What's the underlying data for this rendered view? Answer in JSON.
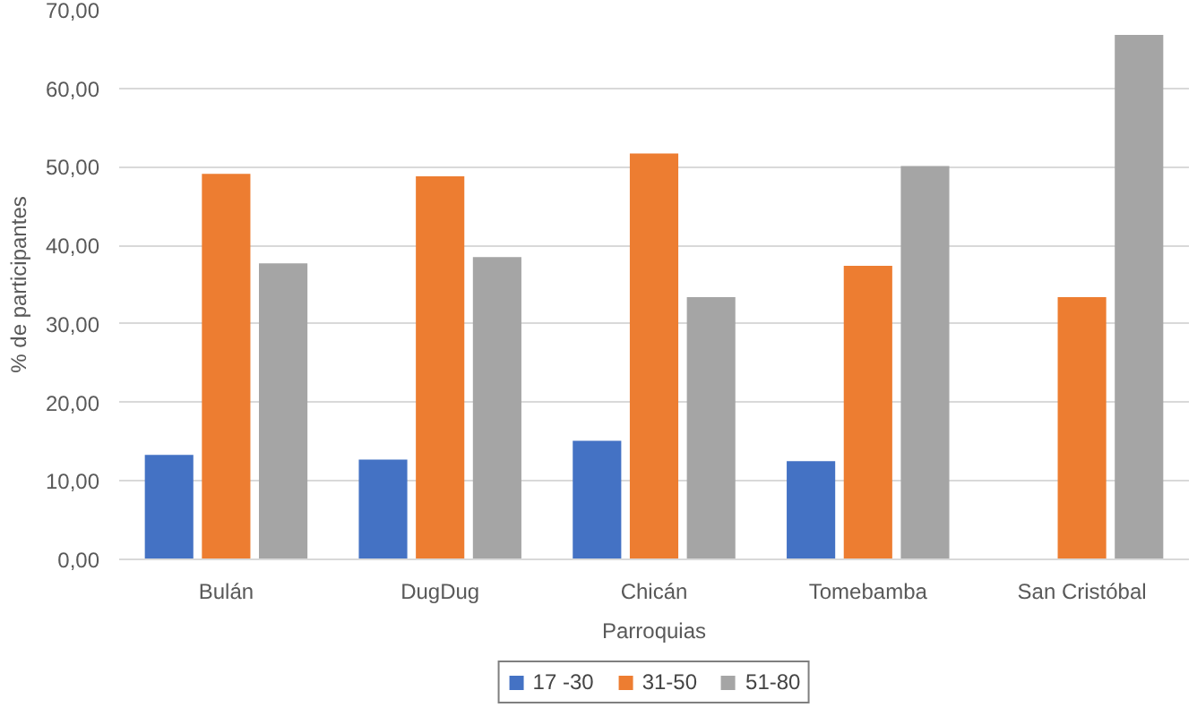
{
  "chart_data": {
    "type": "bar",
    "xlabel": "Parroquias",
    "ylabel": "% de participantes",
    "categories": [
      "Bulán",
      "DugDug",
      "Chicán",
      "Tomebamba",
      "San Cristóbal"
    ],
    "series": [
      {
        "name": "17 -30",
        "color": "#4472c4",
        "values": [
          13.3,
          12.7,
          15.1,
          12.5,
          0
        ]
      },
      {
        "name": "31-50",
        "color": "#ed7d31",
        "values": [
          49.1,
          48.8,
          51.7,
          37.4,
          33.4
        ]
      },
      {
        "name": "51-80",
        "color": "#a5a5a5",
        "values": [
          37.7,
          38.5,
          33.4,
          50.1,
          66.8
        ]
      }
    ],
    "ylim": [
      0,
      70
    ],
    "yticks": [
      {
        "value": 0,
        "label": "0,00"
      },
      {
        "value": 10,
        "label": "10,00"
      },
      {
        "value": 20,
        "label": "20,00"
      },
      {
        "value": 30,
        "label": "30,00"
      },
      {
        "value": 40,
        "label": "40,00"
      },
      {
        "value": 50,
        "label": "50,00"
      },
      {
        "value": 60,
        "label": "60,00"
      },
      {
        "value": 70,
        "label": "70,00"
      }
    ],
    "grid": "y",
    "legend": "bottom"
  }
}
